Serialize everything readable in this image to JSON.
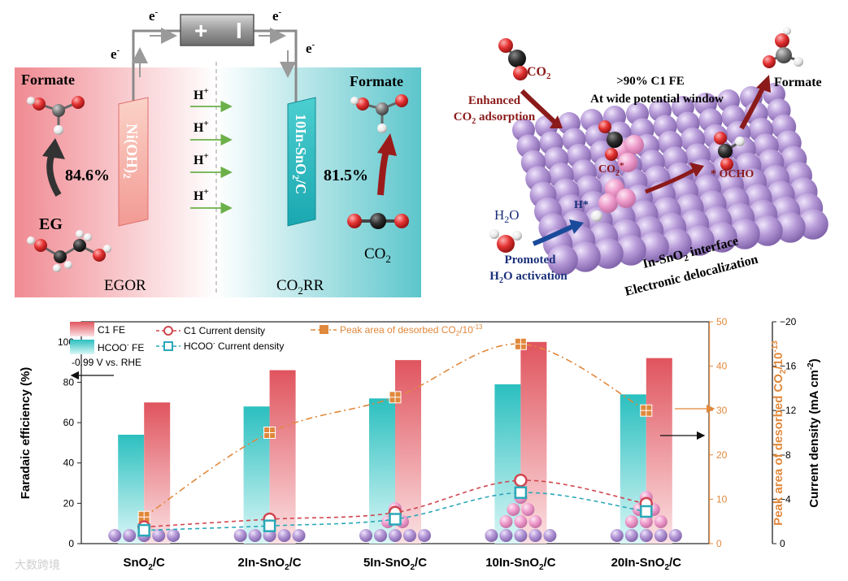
{
  "top_left": {
    "electron": "e",
    "electron_sup": "-",
    "battery_plus": "+",
    "battery_minus": "I",
    "anode_label": "Ni(OH)",
    "anode_sub": "2",
    "cathode_label_a": "10In-SnO",
    "cathode_sub": "2",
    "cathode_label_b": "/C",
    "formate_left": "Formate",
    "formate_right": "Formate",
    "eff_left": "84.6%",
    "eff_right": "81.5%",
    "eg": "EG",
    "co2_main": "CO",
    "co2_sub": "2",
    "egor": "EGOR",
    "co2rr_main": "CO",
    "co2rr_sub": "2",
    "co2rr_tail": "RR",
    "proton_main": "H",
    "proton_sup": "+"
  },
  "top_right": {
    "co2_main": "CO",
    "co2_sub": "2",
    "enhanced_line1": "Enhanced",
    "enhanced_line2_main": "CO",
    "enhanced_line2_sub": "2",
    "enhanced_line2_tail": " adsorption",
    "fe_line1": ">90% C1 FE",
    "fe_line2": "At wide potential window",
    "formate": "Formate",
    "co2_star_main": "CO",
    "co2_star_sub": "2",
    "co2_star_tail": "*",
    "ocho": "* OCHO",
    "h_star": "H*",
    "h2o_main": "H",
    "h2o_sub": "2",
    "h2o_tail": "O",
    "promoted_line1": "Promoted",
    "promoted_line2_main": "H",
    "promoted_line2_sub": "2",
    "promoted_line2_tail": "O activation",
    "interface_main": "In-SnO",
    "interface_sub": "2",
    "interface_tail": " interface",
    "delocalization": "Electronic delocalization"
  },
  "chart_data": {
    "type": "bar",
    "categories": [
      "SnO2/C",
      "2In-SnO2/C",
      "5In-SnO2/C",
      "10In-SnO2/C",
      "20In-SnO2/C"
    ],
    "category_labels": [
      {
        "main": "SnO",
        "sub": "2",
        "tail": "/C"
      },
      {
        "main": "2In-SnO",
        "sub": "2",
        "tail": "/C"
      },
      {
        "main": "5In-SnO",
        "sub": "2",
        "tail": "/C"
      },
      {
        "main": "10In-SnO",
        "sub": "2",
        "tail": "/C"
      },
      {
        "main": "20In-SnO",
        "sub": "2",
        "tail": "/C"
      }
    ],
    "series": [
      {
        "name": "C1 FE",
        "axis": "left",
        "kind": "bar",
        "values": [
          70,
          86,
          91,
          100,
          92
        ]
      },
      {
        "name": "HCOO- FE",
        "axis": "left",
        "kind": "bar",
        "values": [
          54,
          68,
          72,
          79,
          74
        ]
      },
      {
        "name": "C1 Current density",
        "axis": "right",
        "kind": "line",
        "values": [
          -1.5,
          -2.2,
          -2.8,
          -5.7,
          -3.6
        ]
      },
      {
        "name": "HCOO- Current density",
        "axis": "right",
        "kind": "line",
        "values": [
          -1.2,
          -1.6,
          -2.2,
          -4.6,
          -2.9
        ]
      },
      {
        "name": "Peak area of desorbed CO2/10-13",
        "axis": "middle",
        "kind": "line",
        "values": [
          6,
          25,
          33,
          45,
          30
        ]
      }
    ],
    "legend": {
      "c1_fe": "C1 FE",
      "hcoo_fe_main": "HCOO",
      "hcoo_fe_sup": "-",
      "hcoo_fe_tail": " FE",
      "c1_cd": "C1 Current density",
      "hcoo_cd_main": "HCOO",
      "hcoo_cd_sup": "-",
      "hcoo_cd_tail": " Current density",
      "peak_main": "Peak area of desorbed CO",
      "peak_sub": "2",
      "peak_tail": "/10",
      "peak_sup": "-13"
    },
    "potential_note": "-0.99 V vs. RHE",
    "ylabel": "Faradaic efficiency (%)",
    "y2label_main": "Peak area of desorbed CO",
    "y2label_sub": "2",
    "y2label_tail": "/10",
    "y2label_sup": "-13",
    "y3label_main": "Current density (mA cm",
    "y3label_sup": "-2",
    "y3label_tail": ")",
    "ylim": [
      0,
      110
    ],
    "y2lim": [
      0,
      50
    ],
    "y3lim": [
      0,
      -20
    ],
    "yticks": [
      "0",
      "20",
      "40",
      "60",
      "80",
      "100"
    ],
    "y2ticks": [
      "0",
      "10",
      "20",
      "30",
      "40",
      "50"
    ],
    "y3ticks": [
      "0",
      "−4",
      "−8",
      "−12",
      "−16",
      "−20"
    ],
    "colors": {
      "c1_fe": "#e0545e",
      "hcoo_fe": "#2bbfbf",
      "c1_cd": "#d0454f",
      "hcoo_cd": "#2aa8b8",
      "peak": "#e0883c",
      "atom_purple": "#a58ac4",
      "atom_pink": "#d98ac0"
    }
  },
  "watermark": "大数跨境"
}
